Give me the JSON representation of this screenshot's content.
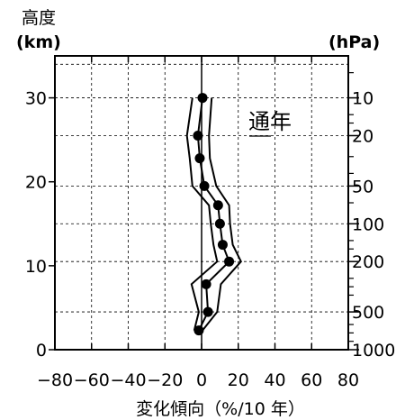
{
  "chart_data": {
    "type": "line",
    "annotation": "通年",
    "xlabel": "変化傾向（%/10 年）",
    "ylabel_left_line1": "高度",
    "ylabel_left_line2": "(km)",
    "ylabel_right": "(hPa)",
    "xlim": [
      -80,
      80
    ],
    "ylim": [
      0,
      35
    ],
    "x_ticks": [
      -80,
      -60,
      -40,
      -20,
      0,
      20,
      40,
      60,
      80
    ],
    "y_ticks": [
      0,
      10,
      20,
      30
    ],
    "right_axis_ticks": [
      {
        "label": "10",
        "alt_km": 30
      },
      {
        "label": "20",
        "alt_km": 25.5
      },
      {
        "label": "50",
        "alt_km": 19.5
      },
      {
        "label": "100",
        "alt_km": 15
      },
      {
        "label": "200",
        "alt_km": 10.5
      },
      {
        "label": "500",
        "alt_km": 4.5
      },
      {
        "label": "1000",
        "alt_km": 0
      }
    ],
    "right_axis_minor_alt_km": [
      33,
      28,
      27,
      23,
      21,
      17.5,
      13,
      12,
      8.5,
      7.5,
      6.5,
      3,
      2,
      1
    ],
    "grid": true,
    "series": [
      {
        "points": [
          {
            "x": 0.5,
            "y": 30
          },
          {
            "x": -2,
            "y": 25.5
          },
          {
            "x": -1,
            "y": 22.8
          },
          {
            "x": 1.5,
            "y": 19.5
          },
          {
            "x": 9,
            "y": 17.2
          },
          {
            "x": 10,
            "y": 15
          },
          {
            "x": 11.5,
            "y": 12.5
          },
          {
            "x": 15,
            "y": 10.5
          },
          {
            "x": 2.5,
            "y": 7.8
          },
          {
            "x": 3.5,
            "y": 4.5
          },
          {
            "x": -1.5,
            "y": 2.3
          }
        ]
      },
      {
        "points": [
          {
            "x": -5,
            "y": 30
          },
          {
            "x": -8,
            "y": 25.5
          },
          {
            "x": -6.5,
            "y": 22.8
          },
          {
            "x": -5,
            "y": 19.5
          },
          {
            "x": 4,
            "y": 17.2
          },
          {
            "x": 5,
            "y": 15
          },
          {
            "x": 6.5,
            "y": 12.5
          },
          {
            "x": 8.5,
            "y": 10.5
          },
          {
            "x": -5.5,
            "y": 7.8
          },
          {
            "x": -1.5,
            "y": 4.5
          },
          {
            "x": -4,
            "y": 2.3
          }
        ]
      },
      {
        "points": [
          {
            "x": 5.5,
            "y": 30
          },
          {
            "x": 4,
            "y": 25.5
          },
          {
            "x": 4.5,
            "y": 22.8
          },
          {
            "x": 8,
            "y": 19.5
          },
          {
            "x": 15,
            "y": 17.2
          },
          {
            "x": 15.5,
            "y": 15
          },
          {
            "x": 17,
            "y": 12.5
          },
          {
            "x": 21.5,
            "y": 10.5
          },
          {
            "x": 10.5,
            "y": 7.8
          },
          {
            "x": 8.5,
            "y": 4.5
          },
          {
            "x": 0.5,
            "y": 2.3
          }
        ]
      }
    ]
  }
}
